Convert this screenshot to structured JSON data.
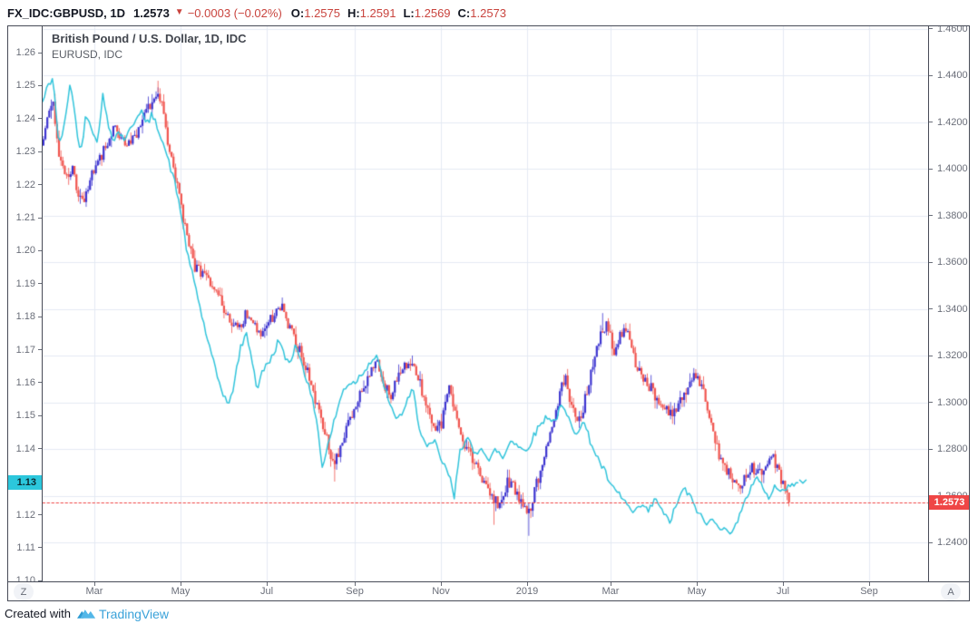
{
  "header": {
    "symbol": "FX_IDC:GBPUSD, 1D",
    "last": "1.2573",
    "direction_icon": "▼",
    "change": "−0.0003 (−0.02%)",
    "ohlc": [
      {
        "label": "O:",
        "value": "1.2575"
      },
      {
        "label": "H:",
        "value": "1.2591"
      },
      {
        "label": "L:",
        "value": "1.2569"
      },
      {
        "label": "C:",
        "value": "1.2573"
      }
    ]
  },
  "legend": {
    "title": "British Pound / U.S. Dollar, 1D, IDC",
    "compare": "EURUSD, IDC"
  },
  "buttons": {
    "timezone": "Z",
    "auto_scale": "A"
  },
  "footer": {
    "created_with": "Created with",
    "brand": "TradingView"
  },
  "colors": {
    "up": "#3d35d0",
    "down": "#f0544e",
    "compare_line": "#31c4db",
    "grid": "#e4eaf3",
    "frame_border": "#474b57",
    "axis_text": "#6a6e79",
    "header_red": "#c9443e",
    "last_line": "#ef4444",
    "last_flag_bg": "#ef4646",
    "compare_flag_bg": "#2cc7dc",
    "compare_flag_text": "#0c2a31"
  },
  "chart_data": {
    "type": "candlestick+line",
    "title": "British Pound / U.S. Dollar, 1D, IDC",
    "interval": "1D",
    "grid": true,
    "last_price": 1.2573,
    "last_price_label": "1.2573",
    "compare_last_price": 1.1297,
    "compare_price_label": "1.13",
    "right_axis": {
      "value_at_top": 1.461,
      "value_at_bottom": 1.2235,
      "ticks": [
        "1.4600",
        "1.4400",
        "1.4200",
        "1.4000",
        "1.3800",
        "1.3600",
        "1.3400",
        "1.3200",
        "1.3000",
        "1.2800",
        "1.2600",
        "1.2400"
      ]
    },
    "left_axis": {
      "value_at_top": 1.268,
      "value_at_bottom": 1.0998,
      "ticks": [
        "1.26",
        "1.25",
        "1.24",
        "1.23",
        "1.22",
        "1.21",
        "1.20",
        "1.19",
        "1.18",
        "1.17",
        "1.16",
        "1.15",
        "1.14",
        "1.13",
        "1.12",
        "1.11",
        "1.10"
      ]
    },
    "x_axis": {
      "labels": [
        "Mar",
        "May",
        "Jul",
        "Sep",
        "Nov",
        "2019",
        "Mar",
        "May",
        "Jul",
        "Sep"
      ],
      "fracs": [
        0.0584,
        0.1557,
        0.2531,
        0.3525,
        0.4498,
        0.5471,
        0.6414,
        0.7387,
        0.8361,
        0.9334
      ]
    },
    "series": [
      {
        "name": "GBPUSD",
        "type": "candlestick",
        "scale": "right",
        "anchors": [
          [
            0.0,
            1.41
          ],
          [
            0.006,
            1.424
          ],
          [
            0.012,
            1.43
          ],
          [
            0.018,
            1.406
          ],
          [
            0.025,
            1.396
          ],
          [
            0.033,
            1.401
          ],
          [
            0.039,
            1.391
          ],
          [
            0.047,
            1.386
          ],
          [
            0.055,
            1.398
          ],
          [
            0.064,
            1.404
          ],
          [
            0.072,
            1.41
          ],
          [
            0.08,
            1.418
          ],
          [
            0.088,
            1.413
          ],
          [
            0.096,
            1.412
          ],
          [
            0.105,
            1.415
          ],
          [
            0.113,
            1.42
          ],
          [
            0.121,
            1.427
          ],
          [
            0.129,
            1.434
          ],
          [
            0.135,
            1.428
          ],
          [
            0.141,
            1.41
          ],
          [
            0.148,
            1.4
          ],
          [
            0.156,
            1.384
          ],
          [
            0.164,
            1.37
          ],
          [
            0.172,
            1.358
          ],
          [
            0.18,
            1.355
          ],
          [
            0.189,
            1.352
          ],
          [
            0.197,
            1.348
          ],
          [
            0.205,
            1.338
          ],
          [
            0.213,
            1.334
          ],
          [
            0.221,
            1.332
          ],
          [
            0.23,
            1.338
          ],
          [
            0.238,
            1.335
          ],
          [
            0.246,
            1.33
          ],
          [
            0.254,
            1.334
          ],
          [
            0.262,
            1.337
          ],
          [
            0.27,
            1.342
          ],
          [
            0.279,
            1.332
          ],
          [
            0.287,
            1.325
          ],
          [
            0.295,
            1.318
          ],
          [
            0.303,
            1.308
          ],
          [
            0.311,
            1.298
          ],
          [
            0.32,
            1.287
          ],
          [
            0.328,
            1.273
          ],
          [
            0.336,
            1.279
          ],
          [
            0.344,
            1.291
          ],
          [
            0.352,
            1.298
          ],
          [
            0.361,
            1.306
          ],
          [
            0.369,
            1.313
          ],
          [
            0.377,
            1.32
          ],
          [
            0.385,
            1.308
          ],
          [
            0.393,
            1.303
          ],
          [
            0.402,
            1.311
          ],
          [
            0.41,
            1.316
          ],
          [
            0.418,
            1.319
          ],
          [
            0.426,
            1.308
          ],
          [
            0.434,
            1.298
          ],
          [
            0.443,
            1.287
          ],
          [
            0.451,
            1.291
          ],
          [
            0.459,
            1.308
          ],
          [
            0.467,
            1.295
          ],
          [
            0.475,
            1.282
          ],
          [
            0.484,
            1.278
          ],
          [
            0.492,
            1.27
          ],
          [
            0.5,
            1.264
          ],
          [
            0.508,
            1.259
          ],
          [
            0.516,
            1.256
          ],
          [
            0.525,
            1.266
          ],
          [
            0.533,
            1.263
          ],
          [
            0.541,
            1.258
          ],
          [
            0.549,
            1.253
          ],
          [
            0.557,
            1.264
          ],
          [
            0.566,
            1.275
          ],
          [
            0.574,
            1.288
          ],
          [
            0.582,
            1.3
          ],
          [
            0.59,
            1.312
          ],
          [
            0.598,
            1.296
          ],
          [
            0.607,
            1.292
          ],
          [
            0.615,
            1.305
          ],
          [
            0.623,
            1.318
          ],
          [
            0.631,
            1.33
          ],
          [
            0.637,
            1.334
          ],
          [
            0.646,
            1.322
          ],
          [
            0.654,
            1.33
          ],
          [
            0.662,
            1.328
          ],
          [
            0.67,
            1.316
          ],
          [
            0.678,
            1.31
          ],
          [
            0.687,
            1.306
          ],
          [
            0.695,
            1.301
          ],
          [
            0.703,
            1.298
          ],
          [
            0.711,
            1.295
          ],
          [
            0.719,
            1.3
          ],
          [
            0.728,
            1.306
          ],
          [
            0.736,
            1.311
          ],
          [
            0.744,
            1.309
          ],
          [
            0.752,
            1.296
          ],
          [
            0.76,
            1.283
          ],
          [
            0.768,
            1.273
          ],
          [
            0.777,
            1.269
          ],
          [
            0.785,
            1.264
          ],
          [
            0.793,
            1.268
          ],
          [
            0.801,
            1.272
          ],
          [
            0.809,
            1.269
          ],
          [
            0.818,
            1.275
          ],
          [
            0.824,
            1.278
          ],
          [
            0.83,
            1.272
          ],
          [
            0.836,
            1.265
          ],
          [
            0.842,
            1.26
          ],
          [
            0.844,
            1.2573
          ]
        ],
        "special_wicks": [
          {
            "frac": 0.13,
            "price": 1.4377,
            "kind": "high",
            "side": "down"
          },
          {
            "frac": 0.329,
            "price": 1.2662,
            "kind": "low",
            "side": "down"
          },
          {
            "frac": 0.509,
            "price": 1.2477,
            "kind": "low",
            "side": "down"
          },
          {
            "frac": 0.55,
            "price": 1.243,
            "kind": "low",
            "side": "up"
          },
          {
            "frac": 0.632,
            "price": 1.3383,
            "kind": "high",
            "side": "up"
          }
        ]
      },
      {
        "name": "EURUSD",
        "type": "line",
        "scale": "left",
        "anchors": [
          [
            0.0,
            1.245
          ],
          [
            0.006,
            1.25
          ],
          [
            0.012,
            1.2525
          ],
          [
            0.018,
            1.232
          ],
          [
            0.025,
            1.238
          ],
          [
            0.031,
            1.2515
          ],
          [
            0.037,
            1.24
          ],
          [
            0.043,
            1.229
          ],
          [
            0.049,
            1.242
          ],
          [
            0.055,
            1.238
          ],
          [
            0.061,
            1.232
          ],
          [
            0.068,
            1.247
          ],
          [
            0.074,
            1.238
          ],
          [
            0.08,
            1.234
          ],
          [
            0.086,
            1.236
          ],
          [
            0.092,
            1.234
          ],
          [
            0.098,
            1.236
          ],
          [
            0.105,
            1.24
          ],
          [
            0.111,
            1.243
          ],
          [
            0.117,
            1.238
          ],
          [
            0.123,
            1.241
          ],
          [
            0.129,
            1.238
          ],
          [
            0.135,
            1.234
          ],
          [
            0.141,
            1.228
          ],
          [
            0.148,
            1.222
          ],
          [
            0.156,
            1.212
          ],
          [
            0.164,
            1.198
          ],
          [
            0.172,
            1.19
          ],
          [
            0.18,
            1.18
          ],
          [
            0.189,
            1.17
          ],
          [
            0.197,
            1.162
          ],
          [
            0.205,
            1.156
          ],
          [
            0.211,
            1.153
          ],
          [
            0.217,
            1.161
          ],
          [
            0.223,
            1.17
          ],
          [
            0.23,
            1.175
          ],
          [
            0.236,
            1.168
          ],
          [
            0.242,
            1.158
          ],
          [
            0.248,
            1.163
          ],
          [
            0.254,
            1.166
          ],
          [
            0.26,
            1.168
          ],
          [
            0.266,
            1.173
          ],
          [
            0.273,
            1.168
          ],
          [
            0.279,
            1.166
          ],
          [
            0.285,
            1.171
          ],
          [
            0.291,
            1.168
          ],
          [
            0.297,
            1.162
          ],
          [
            0.303,
            1.156
          ],
          [
            0.309,
            1.15
          ],
          [
            0.316,
            1.134
          ],
          [
            0.322,
            1.141
          ],
          [
            0.328,
            1.147
          ],
          [
            0.334,
            1.153
          ],
          [
            0.34,
            1.158
          ],
          [
            0.346,
            1.16
          ],
          [
            0.352,
            1.16
          ],
          [
            0.361,
            1.163
          ],
          [
            0.369,
            1.166
          ],
          [
            0.377,
            1.168
          ],
          [
            0.385,
            1.16
          ],
          [
            0.393,
            1.152
          ],
          [
            0.402,
            1.149
          ],
          [
            0.41,
            1.153
          ],
          [
            0.418,
            1.158
          ],
          [
            0.426,
            1.146
          ],
          [
            0.434,
            1.14
          ],
          [
            0.443,
            1.142
          ],
          [
            0.451,
            1.136
          ],
          [
            0.459,
            1.132
          ],
          [
            0.465,
            1.125
          ],
          [
            0.471,
            1.14
          ],
          [
            0.48,
            1.143
          ],
          [
            0.488,
            1.138
          ],
          [
            0.496,
            1.141
          ],
          [
            0.504,
            1.136
          ],
          [
            0.512,
            1.14
          ],
          [
            0.52,
            1.137
          ],
          [
            0.529,
            1.143
          ],
          [
            0.537,
            1.141
          ],
          [
            0.545,
            1.139
          ],
          [
            0.553,
            1.143
          ],
          [
            0.561,
            1.147
          ],
          [
            0.57,
            1.15
          ],
          [
            0.578,
            1.148
          ],
          [
            0.586,
            1.153
          ],
          [
            0.594,
            1.149
          ],
          [
            0.602,
            1.145
          ],
          [
            0.611,
            1.148
          ],
          [
            0.619,
            1.142
          ],
          [
            0.627,
            1.137
          ],
          [
            0.635,
            1.133
          ],
          [
            0.643,
            1.128
          ],
          [
            0.652,
            1.126
          ],
          [
            0.66,
            1.123
          ],
          [
            0.668,
            1.12
          ],
          [
            0.676,
            1.123
          ],
          [
            0.684,
            1.121
          ],
          [
            0.693,
            1.125
          ],
          [
            0.701,
            1.12
          ],
          [
            0.709,
            1.118
          ],
          [
            0.717,
            1.124
          ],
          [
            0.725,
            1.128
          ],
          [
            0.734,
            1.124
          ],
          [
            0.742,
            1.12
          ],
          [
            0.75,
            1.117
          ],
          [
            0.758,
            1.119
          ],
          [
            0.766,
            1.116
          ],
          [
            0.774,
            1.1145
          ],
          [
            0.783,
            1.117
          ],
          [
            0.791,
            1.122
          ],
          [
            0.799,
            1.128
          ],
          [
            0.807,
            1.132
          ],
          [
            0.815,
            1.127
          ],
          [
            0.822,
            1.125
          ],
          [
            0.828,
            1.129
          ],
          [
            0.834,
            1.128
          ],
          [
            0.842,
            1.128
          ],
          [
            0.853,
            1.1297
          ]
        ]
      }
    ]
  }
}
